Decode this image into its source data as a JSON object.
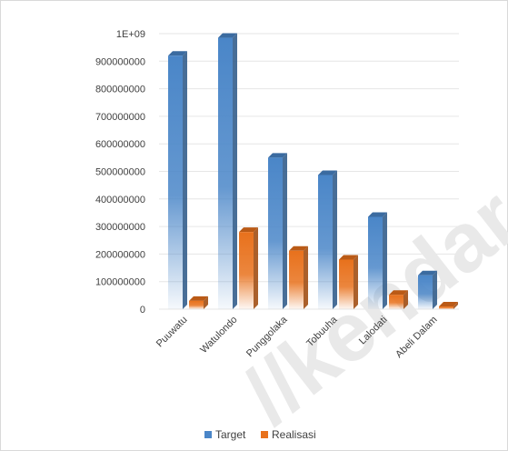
{
  "chart_data": {
    "type": "bar",
    "categories": [
      "Puuwatu",
      "Watulondo",
      "Punggolaka",
      "Tobuuha",
      "Lalodati",
      "Abeli Dalam"
    ],
    "series": [
      {
        "name": "Target",
        "values": [
          920000000,
          985000000,
          550000000,
          487000000,
          335000000,
          123000000
        ],
        "color": "#4a86c8"
      },
      {
        "name": "Realisasi",
        "values": [
          30000000,
          280000000,
          212000000,
          180000000,
          52000000,
          10000000
        ],
        "color": "#e8711c"
      }
    ],
    "yticks": [
      "0",
      "100000000",
      "200000000",
      "300000000",
      "400000000",
      "500000000",
      "600000000",
      "700000000",
      "800000000",
      "900000000",
      "1E+09"
    ],
    "ylim": [
      0,
      1000000000
    ],
    "grid": true,
    "legend_position": "bottom",
    "style": "3d-gradient-bars"
  },
  "watermark": {
    "text": "//kendar"
  }
}
